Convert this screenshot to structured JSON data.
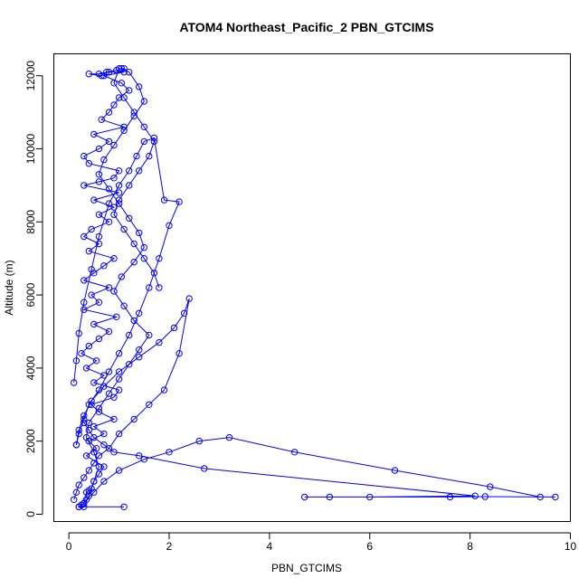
{
  "chart_data": {
    "type": "scatter",
    "title": "ATOM4 Northeast_Pacific_2 PBN_GTCIMS",
    "xlabel": "PBN_GTCIMS",
    "ylabel": "Altitude (m)",
    "xlim": [
      -0.3,
      10.0
    ],
    "ylim": [
      -200,
      12600
    ],
    "xticks": [
      0,
      2,
      4,
      6,
      8,
      10
    ],
    "yticks": [
      0,
      2000,
      4000,
      6000,
      8000,
      10000,
      12000
    ],
    "color": "#0000ff",
    "marker": "open-circle",
    "connected": true,
    "grid": false,
    "legend": "none",
    "series": [
      {
        "x": [
          1.1,
          0.2,
          0.25,
          0.3,
          0.35,
          0.4,
          0.45,
          0.5,
          0.6,
          0.7,
          0.35,
          0.55,
          0.4,
          0.7,
          0.5,
          0.9,
          0.6,
          0.45,
          0.9,
          1.0,
          0.5,
          0.7,
          0.35,
          0.55,
          0.25,
          0.4,
          0.6,
          0.8,
          0.5,
          0.95,
          0.3,
          0.6,
          0.45,
          0.8,
          0.3,
          0.5,
          0.7,
          0.9,
          0.4,
          0.6,
          0.3,
          0.45,
          0.8,
          0.6,
          0.9,
          0.5,
          1.0,
          0.3,
          0.6,
          0.9,
          1.0,
          0.4,
          0.3,
          0.6,
          0.8,
          0.5,
          1.1,
          0.65,
          0.8,
          0.9,
          1.0,
          1.2,
          1.05,
          0.7,
          1.1,
          0.8,
          0.6,
          0.4,
          0.65,
          0.75,
          0.95,
          1.05,
          1.1
        ],
        "y": [
          200,
          200,
          250,
          300,
          600,
          650,
          700,
          900,
          1100,
          1300,
          1600,
          1800,
          2000,
          2200,
          2400,
          2600,
          2800,
          3000,
          3200,
          3400,
          3600,
          3800,
          4000,
          4200,
          4400,
          4600,
          4800,
          5000,
          5200,
          5400,
          5600,
          5800,
          6000,
          6200,
          6400,
          6600,
          6800,
          7000,
          7200,
          7400,
          7600,
          7800,
          8000,
          8200,
          8400,
          8600,
          8800,
          9000,
          9100,
          9200,
          9400,
          9600,
          9800,
          10000,
          10200,
          10400,
          10600,
          10800,
          11000,
          11200,
          11400,
          11600,
          11800,
          12000,
          12100,
          12100,
          12050,
          12050,
          12000,
          12100,
          12150,
          12200,
          12200
        ]
      },
      {
        "x": [
          0.3,
          0.4,
          0.5,
          0.6,
          0.5,
          0.35,
          0.4,
          0.6,
          0.8,
          1.0,
          1.2,
          1.4,
          1.6,
          1.3,
          1.1,
          0.9,
          1.05,
          1.3,
          1.5,
          1.4,
          1.2,
          1.0,
          0.8,
          0.6,
          0.7,
          0.9,
          1.1,
          1.3,
          1.5,
          1.4,
          1.2,
          1.0,
          0.9,
          1.1,
          1.3,
          1.5,
          1.7,
          1.6,
          1.4,
          1.2,
          1.0,
          0.9,
          1.1,
          1.3,
          1.5,
          1.7,
          1.8
        ],
        "y": [
          200,
          500,
          900,
          1300,
          1700,
          2100,
          2500,
          2900,
          3300,
          3700,
          4100,
          4500,
          4900,
          5300,
          5700,
          6100,
          6500,
          6900,
          7300,
          7700,
          8100,
          8500,
          8900,
          9300,
          9700,
          10100,
          10500,
          10900,
          11300,
          11700,
          12100,
          12200,
          11800,
          11400,
          11000,
          10600,
          10200,
          9800,
          9400,
          9000,
          8600,
          8200,
          7800,
          7400,
          7000,
          6600,
          6200
        ]
      },
      {
        "x": [
          0.2,
          0.25,
          0.3,
          0.35,
          0.5,
          0.7,
          1.0,
          1.5,
          2.0,
          2.6,
          3.2,
          4.5,
          6.5,
          8.4,
          9.4,
          9.7,
          8.3,
          7.6,
          5.2,
          4.7,
          6.0,
          8.1,
          2.7,
          1.4,
          0.9,
          0.7,
          0.5,
          0.4,
          0.3
        ],
        "y": [
          200,
          250,
          300,
          400,
          600,
          900,
          1200,
          1500,
          1700,
          2000,
          2100,
          1700,
          1200,
          750,
          470,
          470,
          480,
          470,
          470,
          470,
          470,
          500,
          1250,
          1600,
          1700,
          1900,
          2100,
          2300,
          2500
        ]
      },
      {
        "x": [
          0.15,
          0.2,
          0.3,
          0.45,
          0.7,
          1.0,
          1.4,
          1.8,
          2.1,
          2.3,
          2.4,
          2.2,
          1.9,
          1.6,
          1.3,
          1.0,
          0.8,
          0.6,
          0.5,
          0.4,
          0.3,
          0.2,
          0.15,
          0.1
        ],
        "y": [
          1900,
          2300,
          2700,
          3100,
          3500,
          3900,
          4300,
          4700,
          5100,
          5500,
          5900,
          4400,
          3400,
          3000,
          2600,
          2200,
          1800,
          1600,
          1400,
          1200,
          1000,
          800,
          600,
          400
        ]
      },
      {
        "x": [
          0.1,
          0.15,
          0.2,
          0.3,
          0.45,
          0.6,
          0.8,
          1.0,
          1.2,
          1.35,
          1.5,
          1.7,
          1.9,
          2.2,
          2.0,
          1.8,
          1.6,
          1.4,
          1.2,
          1.0,
          0.8,
          0.6,
          0.4,
          0.3,
          0.2,
          0.15
        ],
        "y": [
          3600,
          4200,
          4950,
          5800,
          6700,
          7600,
          8500,
          9000,
          9400,
          9800,
          10200,
          10300,
          8600,
          8550,
          7900,
          7000,
          6200,
          5500,
          4900,
          4400,
          3900,
          3400,
          3000,
          2600,
          2200,
          1900
        ]
      }
    ]
  }
}
